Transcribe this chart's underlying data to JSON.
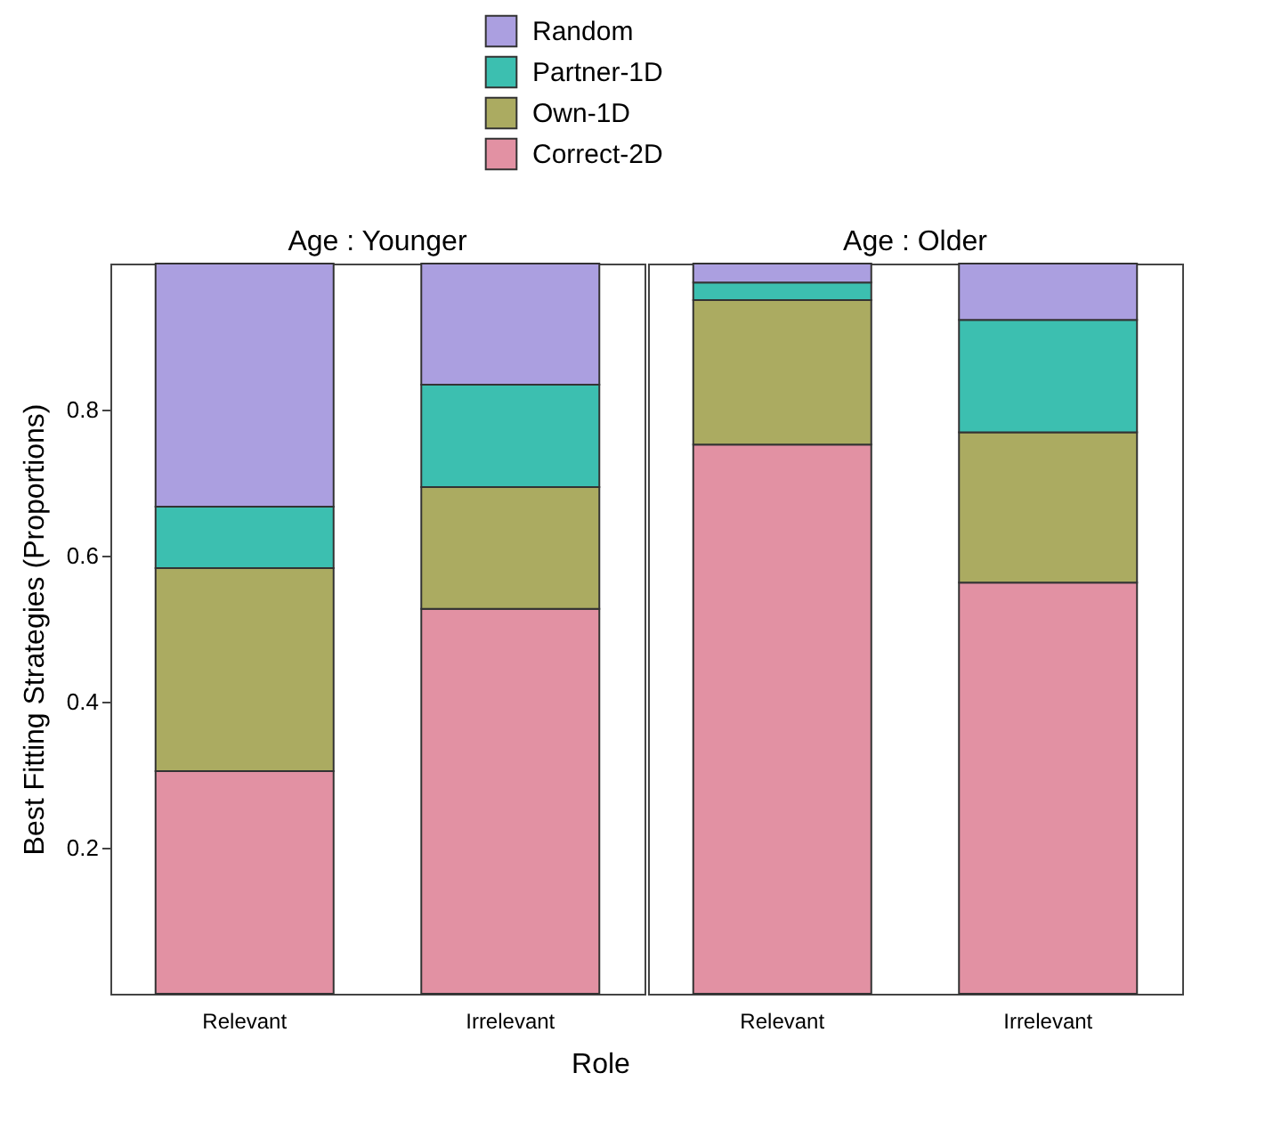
{
  "chart_data": [
    {
      "type": "bar",
      "stacked": true,
      "title": "Age : Younger",
      "ylabel": "Best Fitting Strategies (Proportions)",
      "xlabel": "Role",
      "categories": [
        "Relevant",
        "Irrelevant"
      ],
      "ylim": [
        0,
        1
      ],
      "yticks": [
        0.2,
        0.4,
        0.6,
        0.8
      ],
      "grid": false,
      "legend": "top",
      "series": [
        {
          "name": "Correct-2D",
          "color": "#e291a3",
          "values": [
            0.305,
            0.527
          ]
        },
        {
          "name": "Own-1D",
          "color": "#abab61",
          "values": [
            0.278,
            0.167
          ]
        },
        {
          "name": "Partner-1D",
          "color": "#3cbfb0",
          "values": [
            0.084,
            0.14
          ]
        },
        {
          "name": "Random",
          "color": "#ab9fe0",
          "values": [
            0.333,
            0.166
          ]
        }
      ]
    },
    {
      "type": "bar",
      "stacked": true,
      "title": "Age : Older",
      "categories": [
        "Relevant",
        "Irrelevant"
      ],
      "ylim": [
        0,
        1
      ],
      "yticks": [
        0.2,
        0.4,
        0.6,
        0.8
      ],
      "grid": false,
      "tick_labels": "x",
      "series": [
        {
          "name": "Correct-2D",
          "color": "#e291a3",
          "values": [
            0.752,
            0.563
          ]
        },
        {
          "name": "Own-1D",
          "color": "#abab61",
          "values": [
            0.198,
            0.206
          ]
        },
        {
          "name": "Partner-1D",
          "color": "#3cbfb0",
          "values": [
            0.024,
            0.154
          ]
        },
        {
          "name": "Random",
          "color": "#ab9fe0",
          "values": [
            0.026,
            0.077
          ]
        }
      ]
    }
  ]
}
